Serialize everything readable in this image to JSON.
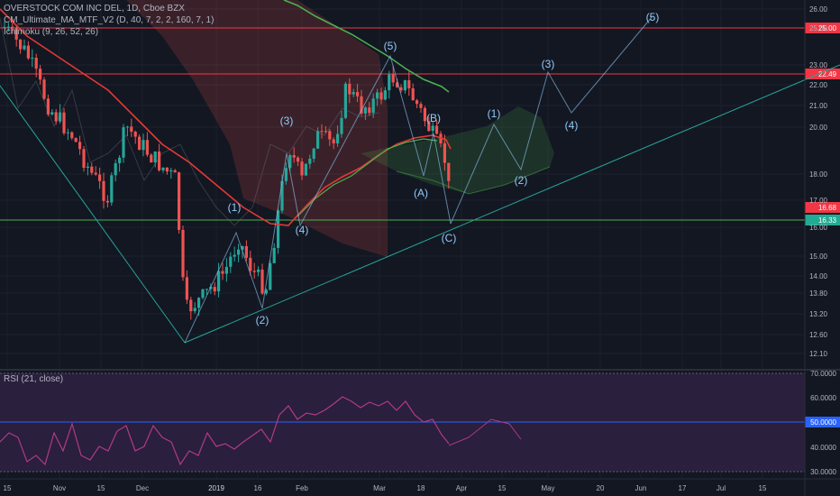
{
  "legend": {
    "symbol": "OVERSTOCK COM INC DEL, 1D, Cboe BZX",
    "ma_indicator": "CM_Ultimate_MA_MTF_V2 (D, 40, 7, 2, 2, 160, 7, 1)",
    "ichimoku": "Ichimoku (9, 26, 52, 26)",
    "rsi": "RSI (21, close)"
  },
  "price_axis": {
    "ticks": [
      "26.00",
      "25.00",
      "23.00",
      "22.00",
      "21.00",
      "20.00",
      "18.00",
      "17.00",
      "16.00",
      "15.00",
      "14.00",
      "13.80",
      "13.20",
      "12.60",
      "12.10"
    ],
    "tagged_levels": [
      {
        "label": "25.00",
        "color": "#f23645"
      },
      {
        "label": "22.49",
        "color": "#f23645"
      },
      {
        "label": "16.68",
        "color": "#f23645"
      },
      {
        "label": "16.33",
        "color": "#22ab94"
      }
    ]
  },
  "rsi_axis": {
    "ticks": [
      "70.0000",
      "60.0000",
      "50.0000",
      "40.0000",
      "30.0000"
    ],
    "tagged": {
      "label": "50.0000",
      "color": "#2962ff"
    }
  },
  "time_axis": {
    "labels": [
      "15",
      "Nov",
      "15",
      "Dec",
      "2019",
      "16",
      "Feb",
      "Mar",
      "18",
      "Apr",
      "15",
      "May",
      "20",
      "Jun",
      "17",
      "Jul",
      "15"
    ]
  },
  "waves": {
    "impulse_top": "(5)",
    "impulse_3": "(3)",
    "impulse_4": "(4)",
    "impulse_1": "(1)",
    "impulse_2": "(2)",
    "corr_a": "(A)",
    "corr_b": "(B)",
    "corr_c": "(C)",
    "proj_1": "(1)",
    "proj_2": "(2)",
    "proj_3": "(3)",
    "proj_4": "(4)",
    "proj_5": "(5)"
  },
  "colors": {
    "background": "#131722",
    "up_candle": "#26a69a",
    "down_candle": "#ef5350",
    "ma_red": "#e53935",
    "ma_green": "#4caf50",
    "wave_blue": "#90caf9",
    "trendline": "#26a69a",
    "support_green": "#4caf50",
    "resistance_red": "#f23645",
    "rsi_line": "#b03a86",
    "rsi_bg": "#2a1f3d",
    "cloud_red": "rgba(239,83,80,0.18)",
    "cloud_green": "rgba(76,175,80,0.18)"
  }
}
